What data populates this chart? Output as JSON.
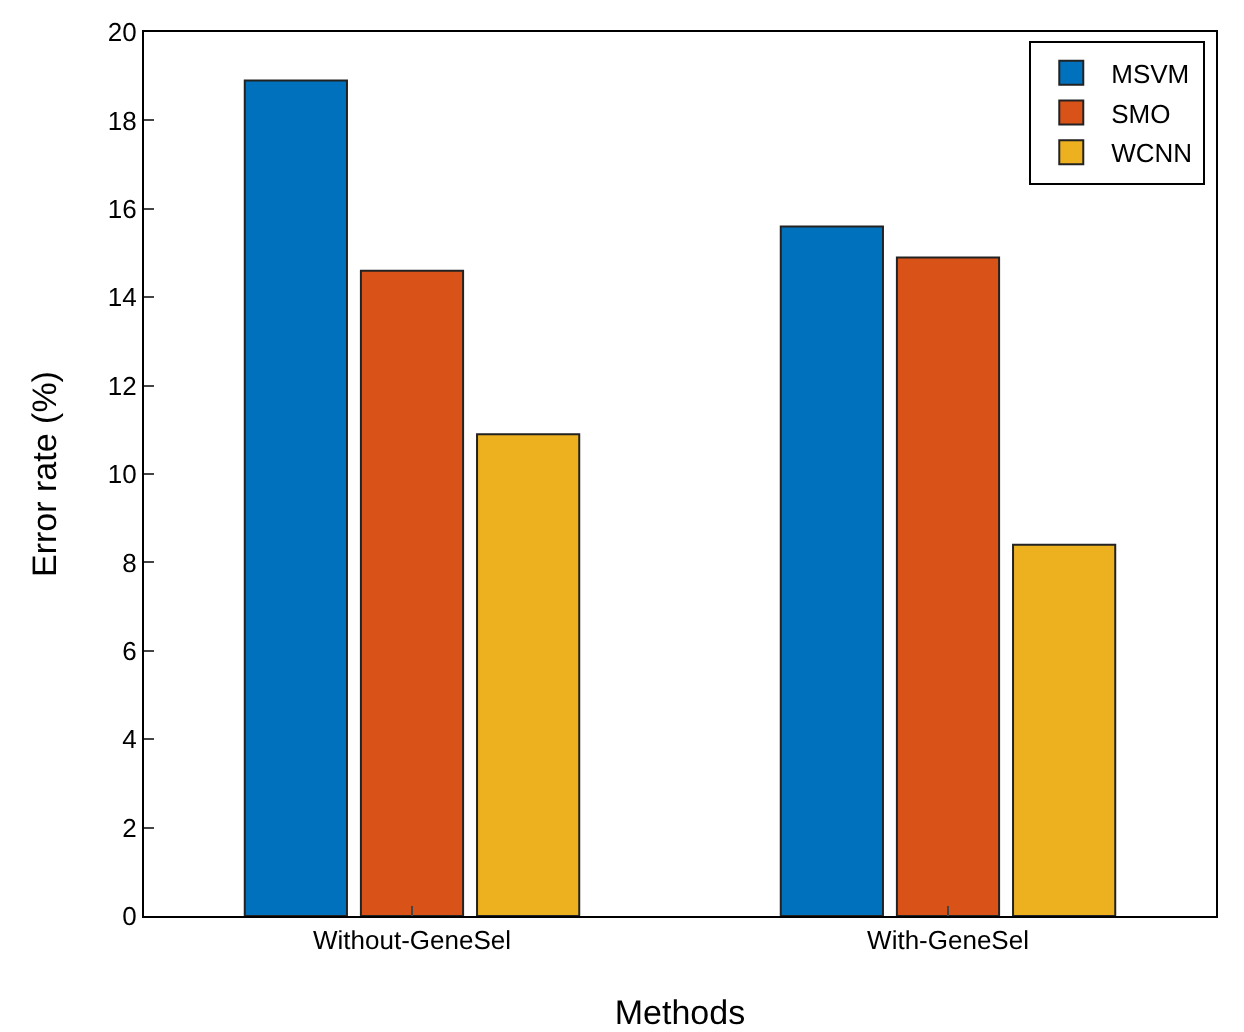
{
  "chart_data": {
    "type": "bar",
    "xlabel": "Methods",
    "ylabel": "Error rate (%)",
    "categories": [
      "Without-GeneSel",
      "With-GeneSel"
    ],
    "series": [
      {
        "name": "MSVM",
        "color": "#0072bd",
        "values": [
          18.9,
          15.6
        ]
      },
      {
        "name": "SMO",
        "color": "#d95319",
        "values": [
          14.6,
          14.9
        ]
      },
      {
        "name": "WCNN",
        "color": "#edb120",
        "values": [
          10.9,
          8.4
        ]
      }
    ],
    "ylim": [
      0,
      20
    ],
    "yticks": [
      0,
      2,
      4,
      6,
      8,
      10,
      12,
      14,
      16,
      18,
      20
    ],
    "grid": false,
    "legend": "top right"
  }
}
